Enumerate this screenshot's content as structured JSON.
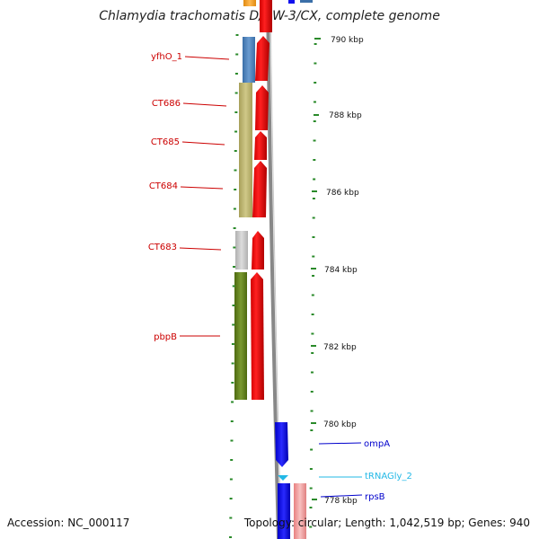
{
  "title": "Chlamydia trachomatis D/UW-3/CX, complete genome",
  "footer": {
    "accession": "Accession: NC_000117",
    "summary": "Topology: circular; Length: 1,042,519 bp; Genes: 940"
  },
  "ticks": [
    "790 kbp",
    "788 kbp",
    "786 kbp",
    "784 kbp",
    "782 kbp",
    "780 kbp",
    "778 kbp"
  ],
  "labels": [
    {
      "name": "yfhO_1",
      "color": "#cc0000"
    },
    {
      "name": "CT686",
      "color": "#cc0000"
    },
    {
      "name": "CT685",
      "color": "#cc0000"
    },
    {
      "name": "CT684",
      "color": "#cc0000"
    },
    {
      "name": "CT683",
      "color": "#cc0000"
    },
    {
      "name": "pbpB",
      "color": "#cc0000"
    },
    {
      "name": "ompA",
      "color": "#0000cc"
    },
    {
      "name": "tRNAGly_2",
      "color": "#22b8e6"
    },
    {
      "name": "rpsB",
      "color": "#0000cc"
    }
  ],
  "colors": {
    "forward_gene": "#ff0000",
    "reverse_gene": "#1010ee",
    "pale_gene": "#f4a0a0",
    "backbone": "#888888",
    "tick_mark": "#2a8a2a"
  }
}
